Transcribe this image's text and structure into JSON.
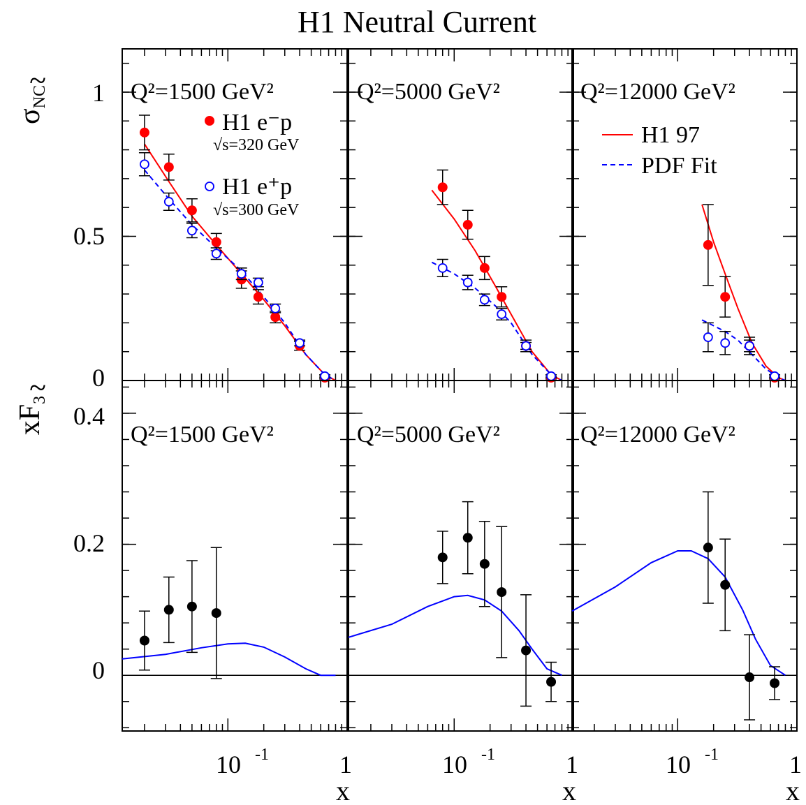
{
  "title": "H1 Neutral Current",
  "colors": {
    "red": "#ff0000",
    "blue": "#0000ff",
    "black": "#000000"
  },
  "y_labels": {
    "top": "σ̃ NC",
    "bottom": "xF̃ 3"
  },
  "x_label": "x",
  "x_tick_labels": [
    "10",
    "-1",
    "1"
  ],
  "top_y_ticks": [
    "0",
    "0.5",
    "1"
  ],
  "bottom_y_ticks": [
    "0",
    "0.2",
    "0.4"
  ],
  "q2_labels": [
    "Q²=1500 GeV²",
    "Q²=5000 GeV²",
    "Q²=12000 GeV²"
  ],
  "legend": {
    "em": {
      "label": "H1 e⁻p",
      "sub": "√s=320 GeV"
    },
    "ep": {
      "label": "H1 e⁺p",
      "sub": "√s=300 GeV"
    },
    "h197": "H1 97",
    "pdf": "PDF Fit"
  },
  "chart_data": [
    {
      "type": "scatter",
      "panel": "sigma_NC, Q2=1500",
      "xscale": "log",
      "xlim": [
        0.013,
        1
      ],
      "ylim": [
        0,
        1.15
      ],
      "series": [
        {
          "name": "H1 e⁻p",
          "points": [
            [
              0.02,
              0.86,
              0.06
            ],
            [
              0.032,
              0.74,
              0.045
            ],
            [
              0.05,
              0.59,
              0.04
            ],
            [
              0.08,
              0.48,
              0.03
            ],
            [
              0.13,
              0.35,
              0.03
            ],
            [
              0.18,
              0.29,
              0.025
            ],
            [
              0.25,
              0.22,
              0.02
            ],
            [
              0.4,
              0.12,
              0.015
            ],
            [
              0.65,
              0.01,
              0.005
            ]
          ]
        },
        {
          "name": "H1 e⁺p",
          "points": [
            [
              0.02,
              0.75,
              0.04
            ],
            [
              0.032,
              0.62,
              0.03
            ],
            [
              0.05,
              0.52,
              0.025
            ],
            [
              0.08,
              0.44,
              0.02
            ],
            [
              0.13,
              0.37,
              0.02
            ],
            [
              0.18,
              0.34,
              0.015
            ],
            [
              0.25,
              0.25,
              0.015
            ],
            [
              0.4,
              0.13,
              0.01
            ],
            [
              0.65,
              0.015,
              0.005
            ]
          ]
        },
        {
          "name": "H1 97",
          "line": [
            [
              0.02,
              0.82
            ],
            [
              0.032,
              0.69
            ],
            [
              0.05,
              0.57
            ],
            [
              0.08,
              0.47
            ],
            [
              0.13,
              0.37
            ],
            [
              0.2,
              0.28
            ],
            [
              0.3,
              0.19
            ],
            [
              0.45,
              0.09
            ],
            [
              0.65,
              0.02
            ],
            [
              0.8,
              0.0
            ]
          ]
        },
        {
          "name": "PDF Fit",
          "line": [
            [
              0.02,
              0.73
            ],
            [
              0.032,
              0.63
            ],
            [
              0.05,
              0.54
            ],
            [
              0.08,
              0.46
            ],
            [
              0.13,
              0.38
            ],
            [
              0.2,
              0.29
            ],
            [
              0.3,
              0.2
            ],
            [
              0.45,
              0.09
            ],
            [
              0.65,
              0.02
            ],
            [
              0.8,
              0.0
            ]
          ]
        }
      ]
    },
    {
      "type": "scatter",
      "panel": "sigma_NC, Q2=5000",
      "xscale": "log",
      "xlim": [
        0.013,
        1
      ],
      "ylim": [
        0,
        1.15
      ],
      "series": [
        {
          "name": "H1 e⁻p",
          "points": [
            [
              0.08,
              0.67,
              0.06
            ],
            [
              0.13,
              0.54,
              0.05
            ],
            [
              0.18,
              0.39,
              0.04
            ],
            [
              0.25,
              0.29,
              0.035
            ],
            [
              0.4,
              0.12,
              0.02
            ],
            [
              0.65,
              0.01,
              0.005
            ]
          ]
        },
        {
          "name": "H1 e⁺p",
          "points": [
            [
              0.08,
              0.39,
              0.03
            ],
            [
              0.13,
              0.34,
              0.025
            ],
            [
              0.18,
              0.28,
              0.02
            ],
            [
              0.25,
              0.23,
              0.02
            ],
            [
              0.4,
              0.12,
              0.012
            ],
            [
              0.65,
              0.015,
              0.005
            ]
          ]
        },
        {
          "name": "H1 97",
          "line": [
            [
              0.065,
              0.66
            ],
            [
              0.1,
              0.56
            ],
            [
              0.15,
              0.45
            ],
            [
              0.22,
              0.33
            ],
            [
              0.3,
              0.23
            ],
            [
              0.45,
              0.1
            ],
            [
              0.65,
              0.02
            ],
            [
              0.8,
              0.0
            ]
          ]
        },
        {
          "name": "PDF Fit",
          "line": [
            [
              0.065,
              0.41
            ],
            [
              0.1,
              0.37
            ],
            [
              0.15,
              0.32
            ],
            [
              0.22,
              0.26
            ],
            [
              0.3,
              0.2
            ],
            [
              0.45,
              0.09
            ],
            [
              0.65,
              0.02
            ],
            [
              0.8,
              0.0
            ]
          ]
        }
      ]
    },
    {
      "type": "scatter",
      "panel": "sigma_NC, Q2=12000",
      "xscale": "log",
      "xlim": [
        0.013,
        1
      ],
      "ylim": [
        0,
        1.15
      ],
      "series": [
        {
          "name": "H1 e⁻p",
          "points": [
            [
              0.18,
              0.47,
              0.14
            ],
            [
              0.25,
              0.29,
              0.07
            ],
            [
              0.4,
              0.12,
              0.03
            ],
            [
              0.65,
              0.01,
              0.005
            ]
          ]
        },
        {
          "name": "H1 e⁺p",
          "points": [
            [
              0.18,
              0.15,
              0.05
            ],
            [
              0.25,
              0.13,
              0.04
            ],
            [
              0.4,
              0.12,
              0.02
            ],
            [
              0.65,
              0.015,
              0.005
            ]
          ]
        },
        {
          "name": "H1 97",
          "line": [
            [
              0.16,
              0.61
            ],
            [
              0.2,
              0.48
            ],
            [
              0.25,
              0.37
            ],
            [
              0.32,
              0.25
            ],
            [
              0.42,
              0.13
            ],
            [
              0.55,
              0.05
            ],
            [
              0.7,
              0.01
            ],
            [
              0.8,
              0.0
            ]
          ]
        },
        {
          "name": "PDF Fit",
          "line": [
            [
              0.16,
              0.21
            ],
            [
              0.2,
              0.19
            ],
            [
              0.25,
              0.17
            ],
            [
              0.32,
              0.14
            ],
            [
              0.42,
              0.09
            ],
            [
              0.55,
              0.04
            ],
            [
              0.7,
              0.01
            ],
            [
              0.8,
              0.0
            ]
          ]
        }
      ]
    },
    {
      "type": "scatter",
      "panel": "xF3, Q2=1500",
      "xscale": "log",
      "xlim": [
        0.013,
        1
      ],
      "ylim": [
        -0.085,
        0.45
      ],
      "series": [
        {
          "name": "xF3",
          "points": [
            [
              0.02,
              0.053,
              0.045
            ],
            [
              0.032,
              0.1,
              0.05
            ],
            [
              0.05,
              0.105,
              0.07
            ],
            [
              0.08,
              0.095,
              0.1
            ]
          ]
        },
        {
          "name": "PDF Fit",
          "line": [
            [
              0.013,
              0.025
            ],
            [
              0.03,
              0.032
            ],
            [
              0.06,
              0.042
            ],
            [
              0.1,
              0.048
            ],
            [
              0.14,
              0.049
            ],
            [
              0.2,
              0.043
            ],
            [
              0.3,
              0.028
            ],
            [
              0.45,
              0.01
            ],
            [
              0.6,
              0.0
            ],
            [
              0.8,
              0.0
            ]
          ]
        }
      ]
    },
    {
      "type": "scatter",
      "panel": "xF3, Q2=5000",
      "xscale": "log",
      "xlim": [
        0.013,
        1
      ],
      "ylim": [
        -0.085,
        0.45
      ],
      "series": [
        {
          "name": "xF3",
          "points": [
            [
              0.08,
              0.18,
              0.04
            ],
            [
              0.13,
              0.21,
              0.055
            ],
            [
              0.18,
              0.17,
              0.065
            ],
            [
              0.25,
              0.127,
              0.1
            ],
            [
              0.4,
              0.038,
              0.085
            ],
            [
              0.65,
              -0.01,
              0.03
            ]
          ]
        },
        {
          "name": "PDF Fit",
          "line": [
            [
              0.013,
              0.058
            ],
            [
              0.03,
              0.078
            ],
            [
              0.06,
              0.105
            ],
            [
              0.1,
              0.12
            ],
            [
              0.13,
              0.122
            ],
            [
              0.18,
              0.115
            ],
            [
              0.25,
              0.098
            ],
            [
              0.35,
              0.068
            ],
            [
              0.45,
              0.04
            ],
            [
              0.6,
              0.01
            ],
            [
              0.8,
              0.0
            ]
          ]
        }
      ]
    },
    {
      "type": "scatter",
      "panel": "xF3, Q2=12000",
      "xscale": "log",
      "xlim": [
        0.013,
        1
      ],
      "ylim": [
        -0.085,
        0.45
      ],
      "series": [
        {
          "name": "xF3",
          "points": [
            [
              0.18,
              0.195,
              0.085
            ],
            [
              0.25,
              0.138,
              0.07
            ],
            [
              0.4,
              -0.003,
              0.065
            ],
            [
              0.65,
              -0.012,
              0.025
            ]
          ]
        },
        {
          "name": "PDF Fit",
          "line": [
            [
              0.013,
              0.098
            ],
            [
              0.03,
              0.135
            ],
            [
              0.06,
              0.172
            ],
            [
              0.1,
              0.19
            ],
            [
              0.13,
              0.19
            ],
            [
              0.18,
              0.178
            ],
            [
              0.25,
              0.15
            ],
            [
              0.35,
              0.1
            ],
            [
              0.45,
              0.055
            ],
            [
              0.6,
              0.015
            ],
            [
              0.8,
              0.0
            ]
          ]
        }
      ]
    }
  ]
}
